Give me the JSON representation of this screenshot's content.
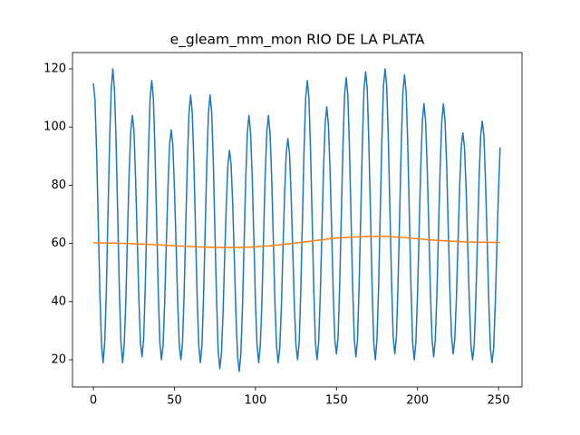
{
  "chart_data": {
    "type": "line",
    "title": "e_gleam_mm_mon RIO DE LA PLATA",
    "xlim": [
      -12.9,
      264.5
    ],
    "xticks": [
      0,
      50,
      100,
      150,
      200,
      250
    ],
    "ylim": [
      10.65,
      125.6
    ],
    "yticks": [
      20,
      40,
      60,
      80,
      100,
      120
    ],
    "series": [
      {
        "color": "#1f77b4",
        "x": [
          0,
          1,
          2,
          3,
          4,
          5,
          6,
          7,
          8,
          9,
          10,
          11,
          12,
          13,
          14,
          15,
          16,
          17,
          18,
          19,
          20,
          21,
          22,
          23,
          24,
          25,
          26,
          27,
          28,
          29,
          30,
          31,
          32,
          33,
          34,
          35,
          36,
          37,
          38,
          39,
          40,
          41,
          42,
          43,
          44,
          45,
          46,
          47,
          48,
          49,
          50,
          51,
          52,
          53,
          54,
          55,
          56,
          57,
          58,
          59,
          60,
          61,
          62,
          63,
          64,
          65,
          66,
          67,
          68,
          69,
          70,
          71,
          72,
          73,
          74,
          75,
          76,
          77,
          78,
          79,
          80,
          81,
          82,
          83,
          84,
          85,
          86,
          87,
          88,
          89,
          90,
          91,
          92,
          93,
          94,
          95,
          96,
          97,
          98,
          99,
          100,
          101,
          102,
          103,
          104,
          105,
          106,
          107,
          108,
          109,
          110,
          111,
          112,
          113,
          114,
          115,
          116,
          117,
          118,
          119,
          120,
          121,
          122,
          123,
          124,
          125,
          126,
          127,
          128,
          129,
          130,
          131,
          132,
          133,
          134,
          135,
          136,
          137,
          138,
          139,
          140,
          141,
          142,
          143,
          144,
          145,
          146,
          147,
          148,
          149,
          150,
          151,
          152,
          153,
          154,
          155,
          156,
          157,
          158,
          159,
          160,
          161,
          162,
          163,
          164,
          165,
          166,
          167,
          168,
          169,
          170,
          171,
          172,
          173,
          174,
          175,
          176,
          177,
          178,
          179,
          180,
          181,
          182,
          183,
          184,
          185,
          186,
          187,
          188,
          189,
          190,
          191,
          192,
          193,
          194,
          195,
          196,
          197,
          198,
          199,
          200,
          201,
          202,
          203,
          204,
          205,
          206,
          207,
          208,
          209,
          210,
          211,
          212,
          213,
          214,
          215,
          216,
          217,
          218,
          219,
          220,
          221,
          222,
          223,
          224,
          225,
          226,
          227,
          228,
          229,
          230,
          231,
          232,
          233,
          234,
          235,
          236,
          237,
          238,
          239,
          240,
          241,
          242,
          243,
          244,
          245,
          246,
          247,
          248,
          249,
          250,
          251
        ],
        "values": [
          115,
          109,
          91,
          67,
          43,
          25,
          19,
          26,
          44,
          70,
          95,
          113,
          120,
          113,
          95,
          70,
          44,
          26,
          19,
          25,
          40,
          62,
          83,
          98,
          104,
          99,
          83,
          63,
          42,
          26,
          21,
          27,
          45,
          69,
          92,
          110,
          116,
          110,
          92,
          68,
          44,
          26,
          20,
          25,
          40,
          60,
          79,
          94,
          99,
          94,
          79,
          60,
          40,
          25,
          20,
          26,
          43,
          66,
          88,
          105,
          111,
          105,
          88,
          65,
          42,
          25,
          19,
          25,
          42,
          65,
          88,
          105,
          111,
          105,
          88,
          64,
          41,
          23,
          17,
          22,
          36,
          55,
          73,
          87,
          92,
          87,
          73,
          54,
          35,
          21,
          16,
          22,
          38,
          60,
          82,
          98,
          104,
          98,
          83,
          62,
          40,
          25,
          19,
          25,
          40,
          62,
          83,
          98,
          104,
          98,
          83,
          62,
          40,
          25,
          19,
          24,
          38,
          58,
          77,
          91,
          96,
          91,
          77,
          58,
          39,
          25,
          20,
          26,
          44,
          68,
          92,
          110,
          116,
          110,
          92,
          68,
          44,
          26,
          20,
          26,
          42,
          64,
          85,
          101,
          107,
          101,
          86,
          65,
          43,
          27,
          22,
          28,
          46,
          70,
          93,
          111,
          117,
          111,
          93,
          69,
          45,
          27,
          21,
          27,
          46,
          70,
          95,
          113,
          119,
          113,
          94,
          70,
          45,
          26,
          20,
          27,
          45,
          70,
          95,
          114,
          120,
          114,
          96,
          71,
          47,
          28,
          22,
          28,
          46,
          70,
          94,
          112,
          118,
          112,
          94,
          69,
          45,
          26,
          20,
          26,
          42,
          64,
          86,
          102,
          108,
          102,
          86,
          65,
          43,
          27,
          21,
          27,
          43,
          65,
          86,
          102,
          108,
          102,
          87,
          65,
          44,
          28,
          22,
          27,
          41,
          60,
          79,
          93,
          98,
          93,
          79,
          59,
          40,
          25,
          20,
          25,
          41,
          61,
          82,
          97,
          102,
          97,
          81,
          61,
          40,
          24,
          19,
          24,
          39,
          59,
          78,
          93
        ]
      },
      {
        "color": "#ff7f0e",
        "x": [
          0,
          10,
          20,
          30,
          40,
          50,
          60,
          70,
          80,
          90,
          100,
          110,
          120,
          130,
          140,
          150,
          160,
          170,
          180,
          190,
          200,
          210,
          220,
          230,
          240,
          251
        ],
        "values": [
          60.2,
          60.1,
          60.0,
          59.8,
          59.5,
          59.2,
          58.9,
          58.7,
          58.6,
          58.6,
          58.8,
          59.2,
          59.8,
          60.5,
          61.2,
          61.8,
          62.2,
          62.4,
          62.4,
          62.1,
          61.6,
          61.1,
          60.8,
          60.5,
          60.4,
          60.3
        ]
      }
    ]
  }
}
